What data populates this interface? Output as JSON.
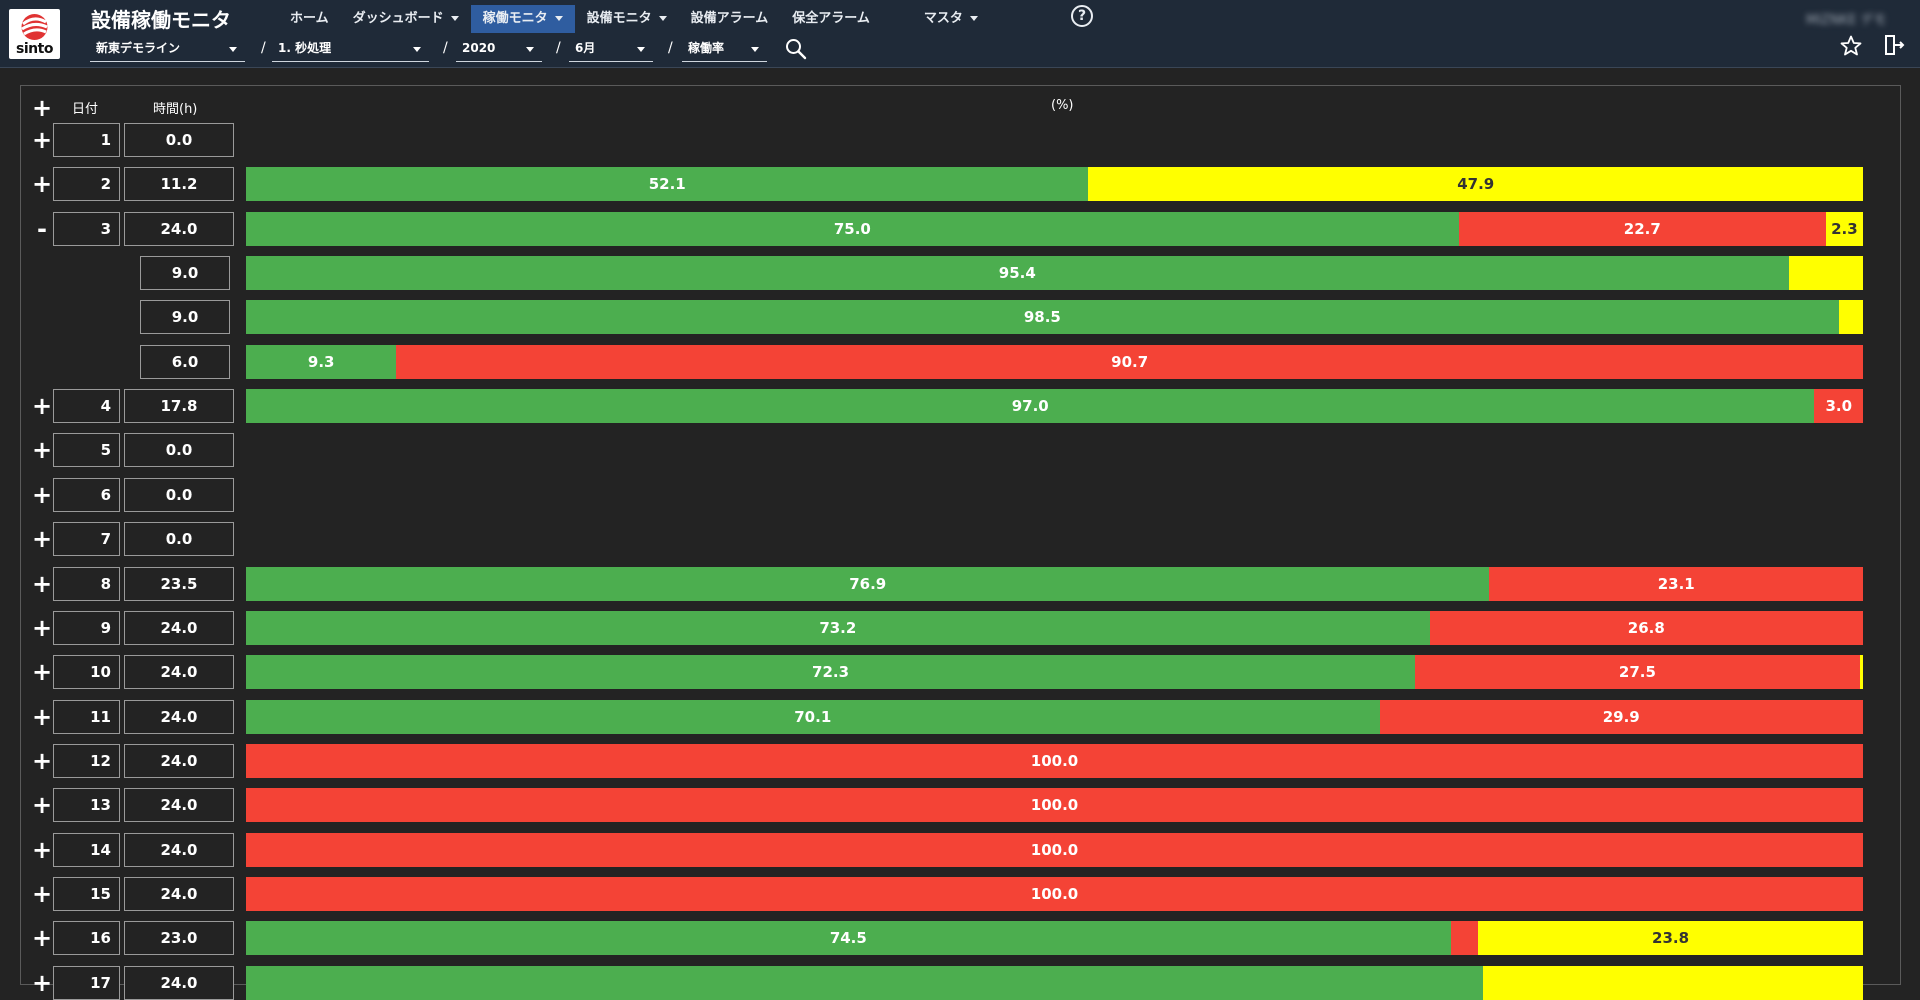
{
  "header": {
    "logo_text": "sinto",
    "app_title": "設備稼働モニタ",
    "nav": [
      {
        "label": "ホーム",
        "dropdown": false,
        "active": false
      },
      {
        "label": "ダッシュボード",
        "dropdown": true,
        "active": false
      },
      {
        "label": "稼働モニタ",
        "dropdown": true,
        "active": true
      },
      {
        "label": "設備モニタ",
        "dropdown": true,
        "active": false
      },
      {
        "label": "設備アラーム",
        "dropdown": false,
        "active": false
      },
      {
        "label": "保全アラーム",
        "dropdown": false,
        "active": false
      },
      {
        "label": "マスタ",
        "dropdown": true,
        "active": false
      }
    ],
    "help_symbol": "?",
    "user_name": "MIZNKE デモ",
    "filters": {
      "line": "新東デモライン",
      "process": "1. 秒処理",
      "year": "2020",
      "month": "6月",
      "metric": "稼働率",
      "separator": "/"
    }
  },
  "table": {
    "headers": {
      "date": "日付",
      "hours": "時間(h)",
      "percent": "(%)"
    },
    "expand_all": "+"
  },
  "colors": {
    "green": "#4cae4f",
    "red": "#f44336",
    "yellow": "#ffff00"
  },
  "chart_data": {
    "type": "bar",
    "orientation": "horizontal-stacked",
    "title": "(%)",
    "series_colors": [
      "green",
      "red",
      "yellow"
    ],
    "scale_max": 100,
    "rows": [
      {
        "toggle": "+",
        "date": "1",
        "hours": "0.0",
        "segments": []
      },
      {
        "toggle": "+",
        "date": "2",
        "hours": "11.2",
        "segments": [
          {
            "c": "green",
            "v": 52.1,
            "label": "52.1"
          },
          {
            "c": "yellow",
            "v": 47.9,
            "label": "47.9"
          }
        ]
      },
      {
        "toggle": "-",
        "date": "3",
        "hours": "24.0",
        "segments": [
          {
            "c": "green",
            "v": 75.0,
            "label": "75.0"
          },
          {
            "c": "red",
            "v": 22.7,
            "label": "22.7"
          },
          {
            "c": "yellow",
            "v": 2.3,
            "label": "2.3"
          }
        ]
      },
      {
        "sub": true,
        "hours": "9.0",
        "segments": [
          {
            "c": "green",
            "v": 95.4,
            "label": "95.4"
          },
          {
            "c": "yellow",
            "v": 4.6,
            "label": ""
          }
        ]
      },
      {
        "sub": true,
        "hours": "9.0",
        "segments": [
          {
            "c": "green",
            "v": 98.5,
            "label": "98.5"
          },
          {
            "c": "yellow",
            "v": 1.5,
            "label": ""
          }
        ]
      },
      {
        "sub": true,
        "hours": "6.0",
        "segments": [
          {
            "c": "green",
            "v": 9.3,
            "label": "9.3"
          },
          {
            "c": "red",
            "v": 90.7,
            "label": "90.7"
          }
        ]
      },
      {
        "toggle": "+",
        "date": "4",
        "hours": "17.8",
        "segments": [
          {
            "c": "green",
            "v": 97.0,
            "label": "97.0"
          },
          {
            "c": "red",
            "v": 3.0,
            "label": "3.0"
          }
        ]
      },
      {
        "toggle": "+",
        "date": "5",
        "hours": "0.0",
        "segments": []
      },
      {
        "toggle": "+",
        "date": "6",
        "hours": "0.0",
        "segments": []
      },
      {
        "toggle": "+",
        "date": "7",
        "hours": "0.0",
        "segments": []
      },
      {
        "toggle": "+",
        "date": "8",
        "hours": "23.5",
        "segments": [
          {
            "c": "green",
            "v": 76.9,
            "label": "76.9"
          },
          {
            "c": "red",
            "v": 23.1,
            "label": "23.1"
          }
        ]
      },
      {
        "toggle": "+",
        "date": "9",
        "hours": "24.0",
        "segments": [
          {
            "c": "green",
            "v": 73.2,
            "label": "73.2"
          },
          {
            "c": "red",
            "v": 26.8,
            "label": "26.8"
          }
        ]
      },
      {
        "toggle": "+",
        "date": "10",
        "hours": "24.0",
        "segments": [
          {
            "c": "green",
            "v": 72.3,
            "label": "72.3"
          },
          {
            "c": "red",
            "v": 27.5,
            "label": "27.5"
          },
          {
            "c": "yellow",
            "v": 0.2,
            "label": ""
          }
        ]
      },
      {
        "toggle": "+",
        "date": "11",
        "hours": "24.0",
        "segments": [
          {
            "c": "green",
            "v": 70.1,
            "label": "70.1"
          },
          {
            "c": "red",
            "v": 29.9,
            "label": "29.9"
          }
        ]
      },
      {
        "toggle": "+",
        "date": "12",
        "hours": "24.0",
        "segments": [
          {
            "c": "red",
            "v": 100.0,
            "label": "100.0"
          }
        ]
      },
      {
        "toggle": "+",
        "date": "13",
        "hours": "24.0",
        "segments": [
          {
            "c": "red",
            "v": 100.0,
            "label": "100.0"
          }
        ]
      },
      {
        "toggle": "+",
        "date": "14",
        "hours": "24.0",
        "segments": [
          {
            "c": "red",
            "v": 100.0,
            "label": "100.0"
          }
        ]
      },
      {
        "toggle": "+",
        "date": "15",
        "hours": "24.0",
        "segments": [
          {
            "c": "red",
            "v": 100.0,
            "label": "100.0"
          }
        ]
      },
      {
        "toggle": "+",
        "date": "16",
        "hours": "23.0",
        "segments": [
          {
            "c": "green",
            "v": 74.5,
            "label": "74.5"
          },
          {
            "c": "red",
            "v": 1.7,
            "label": ""
          },
          {
            "c": "yellow",
            "v": 23.8,
            "label": "23.8"
          }
        ]
      },
      {
        "toggle": "+",
        "date": "17",
        "hours": "24.0",
        "segments": [
          {
            "c": "green",
            "v": 76.5,
            "label": ""
          },
          {
            "c": "yellow",
            "v": 23.5,
            "label": ""
          }
        ]
      }
    ]
  }
}
